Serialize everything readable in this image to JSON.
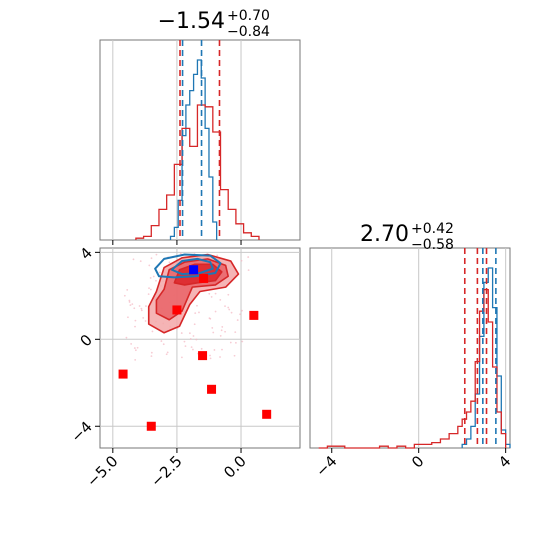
{
  "chart_data": [
    {
      "type": "histogram",
      "panel": "marginal-x",
      "title": {
        "value": "−1.54",
        "sup": "+0.70",
        "sub": "−0.84"
      },
      "xlim": [
        -5.5,
        2.3
      ],
      "grid": true,
      "vlines": [
        {
          "x": -2.38,
          "color": "#d62728",
          "style": "dashed"
        },
        {
          "x": -0.84,
          "color": "#d62728",
          "style": "dashed"
        },
        {
          "x": -1.54,
          "color": "#1f77b4",
          "style": "dashed"
        },
        {
          "x": -2.28,
          "color": "#1f77b4",
          "style": "dashed"
        }
      ],
      "series": [
        {
          "color": "#1f77b4",
          "bin_edges": [
            -2.75,
            -2.6,
            -2.45,
            -2.3,
            -2.15,
            -2.0,
            -1.85,
            -1.7,
            -1.55,
            -1.4,
            -1.25,
            -1.1,
            -0.95
          ],
          "heights": [
            0.02,
            0.07,
            0.22,
            0.58,
            0.75,
            0.83,
            0.92,
            1.0,
            0.9,
            0.62,
            0.35,
            0.1
          ]
        },
        {
          "color": "#d62728",
          "bin_edges": [
            -4.1,
            -3.8,
            -3.5,
            -3.2,
            -2.9,
            -2.6,
            -2.3,
            -2.0,
            -1.7,
            -1.4,
            -1.1,
            -0.8,
            -0.5,
            -0.2,
            0.1,
            0.4,
            0.7
          ],
          "heights": [
            0.01,
            0.02,
            0.08,
            0.17,
            0.25,
            0.42,
            0.62,
            0.52,
            0.75,
            0.74,
            0.6,
            0.28,
            0.17,
            0.09,
            0.04,
            0.02
          ]
        }
      ],
      "xticks": [
        -5.0,
        -2.5,
        0.0
      ]
    },
    {
      "type": "scatter",
      "panel": "joint",
      "xlim": [
        -5.5,
        2.3
      ],
      "ylim": [
        -5.0,
        4.2
      ],
      "grid": true,
      "xticks": [
        -5.0,
        -2.5,
        0.0
      ],
      "xtick_labels": [
        "−5.0",
        "−2.5",
        "0.0"
      ],
      "yticks": [
        4,
        0,
        -4
      ],
      "ytick_labels": [
        "4",
        "0",
        "−4"
      ],
      "markers": [
        {
          "x": -1.85,
          "y": 3.2,
          "color": "#0000ff"
        },
        {
          "x": -1.46,
          "y": 2.8,
          "color": "#ff0000"
        },
        {
          "x": -2.5,
          "y": 1.35,
          "color": "#ff0000"
        },
        {
          "x": 0.5,
          "y": 1.1,
          "color": "#ff0000"
        },
        {
          "x": -1.5,
          "y": -0.75,
          "color": "#ff0000"
        },
        {
          "x": -4.6,
          "y": -1.6,
          "color": "#ff0000"
        },
        {
          "x": -1.15,
          "y": -2.3,
          "color": "#ff0000"
        },
        {
          "x": 1.0,
          "y": -3.45,
          "color": "#ff0000"
        },
        {
          "x": -3.5,
          "y": -4.0,
          "color": "#ff0000"
        }
      ],
      "red_contours": [
        {
          "level": "outer",
          "points": [
            [
              -3.3,
              2.2
            ],
            [
              -3.0,
              3.3
            ],
            [
              -2.3,
              3.75
            ],
            [
              -1.3,
              3.9
            ],
            [
              -0.4,
              3.6
            ],
            [
              -0.1,
              3.0
            ],
            [
              -0.6,
              2.4
            ],
            [
              -1.6,
              2.2
            ],
            [
              -2.0,
              1.6
            ],
            [
              -2.4,
              0.6
            ],
            [
              -3.0,
              0.3
            ],
            [
              -3.6,
              0.7
            ],
            [
              -3.6,
              1.5
            ]
          ]
        },
        {
          "level": "mid",
          "points": [
            [
              -3.0,
              2.3
            ],
            [
              -2.8,
              3.2
            ],
            [
              -2.2,
              3.55
            ],
            [
              -1.3,
              3.7
            ],
            [
              -0.6,
              3.4
            ],
            [
              -0.5,
              2.9
            ],
            [
              -1.0,
              2.5
            ],
            [
              -1.9,
              2.4
            ],
            [
              -2.3,
              1.3
            ],
            [
              -2.8,
              0.9
            ],
            [
              -3.3,
              1.2
            ],
            [
              -3.3,
              1.8
            ]
          ]
        },
        {
          "level": "inner",
          "points": [
            [
              -2.6,
              2.6
            ],
            [
              -2.4,
              3.2
            ],
            [
              -1.8,
              3.45
            ],
            [
              -1.1,
              3.45
            ],
            [
              -0.75,
              3.1
            ],
            [
              -1.0,
              2.7
            ],
            [
              -1.7,
              2.6
            ],
            [
              -2.2,
              2.5
            ]
          ]
        }
      ],
      "blue_contours": [
        {
          "level": "outer",
          "points": [
            [
              -3.35,
              3.25
            ],
            [
              -3.0,
              3.7
            ],
            [
              -2.2,
              3.9
            ],
            [
              -1.2,
              3.85
            ],
            [
              -0.8,
              3.5
            ],
            [
              -1.0,
              3.05
            ],
            [
              -1.8,
              2.9
            ],
            [
              -2.6,
              2.85
            ],
            [
              -3.2,
              2.9
            ]
          ]
        },
        {
          "level": "inner",
          "points": [
            [
              -2.7,
              3.2
            ],
            [
              -2.3,
              3.6
            ],
            [
              -1.7,
              3.7
            ],
            [
              -1.2,
              3.55
            ],
            [
              -1.1,
              3.25
            ],
            [
              -1.6,
              3.05
            ],
            [
              -2.3,
              3.0
            ]
          ]
        }
      ]
    },
    {
      "type": "histogram",
      "panel": "marginal-y",
      "title": {
        "value": "2.70",
        "sup": "+0.42",
        "sub": "−0.58"
      },
      "xlim": [
        -5.0,
        4.2
      ],
      "grid": true,
      "vlines": [
        {
          "x": 2.12,
          "color": "#d62728",
          "style": "dashed"
        },
        {
          "x": 2.7,
          "color": "#d62728",
          "style": "dashed"
        },
        {
          "x": 3.12,
          "color": "#d62728",
          "style": "dashed"
        },
        {
          "x": 2.95,
          "color": "#1f77b4",
          "style": "dashed"
        },
        {
          "x": 3.55,
          "color": "#1f77b4",
          "style": "dashed"
        }
      ],
      "series": [
        {
          "color": "#1f77b4",
          "bin_edges": [
            2.0,
            2.2,
            2.4,
            2.6,
            2.8,
            3.0,
            3.2,
            3.4,
            3.6,
            3.8,
            4.0,
            4.2
          ],
          "heights": [
            0.02,
            0.05,
            0.12,
            0.3,
            0.62,
            0.92,
            1.0,
            0.78,
            0.4,
            0.1,
            0.02
          ]
        },
        {
          "color": "#d62728",
          "bin_edges": [
            -4.6,
            -4.2,
            -3.8,
            -3.4,
            -3.0,
            -2.6,
            -2.2,
            -1.8,
            -1.4,
            -1.0,
            -0.6,
            -0.2,
            0.2,
            0.6,
            1.0,
            1.4,
            1.8,
            2.0,
            2.2,
            2.4,
            2.6,
            2.8,
            3.0,
            3.2,
            3.4,
            3.6,
            3.8,
            4.0
          ],
          "heights": [
            0.0,
            0.01,
            0.01,
            0.0,
            0.0,
            0.0,
            0.0,
            0.01,
            0.0,
            0.01,
            0.0,
            0.02,
            0.02,
            0.03,
            0.05,
            0.08,
            0.12,
            0.16,
            0.2,
            0.26,
            0.48,
            0.76,
            0.88,
            0.7,
            0.45,
            0.2,
            0.08
          ]
        }
      ],
      "xticks": [
        -4,
        0,
        4
      ],
      "xtick_labels": [
        "−4",
        "0",
        "4"
      ]
    }
  ]
}
